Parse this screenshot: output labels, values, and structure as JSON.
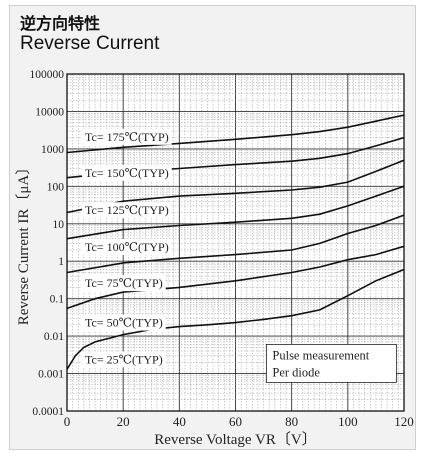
{
  "header": {
    "title_jp": "逆方向特性",
    "title_en": "Reverse Current"
  },
  "chart_data": {
    "type": "line",
    "title": "Reverse Current",
    "xlabel": "Reverse Voltage  VR〔V〕",
    "ylabel": "Reverse Current  IR〔μA〕",
    "xlim": [
      0,
      120
    ],
    "ylim": [
      0.0001,
      100000
    ],
    "yscale": "log",
    "grid": true,
    "x_ticks": [
      "0",
      "20",
      "40",
      "60",
      "80",
      "100",
      "120"
    ],
    "y_ticks": [
      "0.0001",
      "0.001",
      "0.01",
      "0.1",
      "1",
      "10",
      "100",
      "1000",
      "10000",
      "100000"
    ],
    "annotation": [
      "Pulse measurement",
      "Per diode"
    ],
    "series": [
      {
        "name": "Tc= 175℃(TYP)",
        "label_at": [
          5,
          2100
        ],
        "points": [
          [
            0,
            800
          ],
          [
            20,
            1100
          ],
          [
            40,
            1400
          ],
          [
            60,
            1800
          ],
          [
            80,
            2400
          ],
          [
            90,
            2900
          ],
          [
            100,
            3800
          ],
          [
            110,
            5500
          ],
          [
            120,
            8000
          ]
        ]
      },
      {
        "name": "Tc= 150℃(TYP)",
        "label_at": [
          5,
          230
        ],
        "points": [
          [
            0,
            170
          ],
          [
            20,
            240
          ],
          [
            40,
            300
          ],
          [
            60,
            380
          ],
          [
            80,
            470
          ],
          [
            90,
            560
          ],
          [
            100,
            750
          ],
          [
            110,
            1200
          ],
          [
            120,
            2000
          ]
        ]
      },
      {
        "name": "Tc= 125℃(TYP)",
        "label_at": [
          5,
          23
        ],
        "points": [
          [
            0,
            20
          ],
          [
            20,
            40
          ],
          [
            40,
            55
          ],
          [
            60,
            65
          ],
          [
            80,
            80
          ],
          [
            90,
            95
          ],
          [
            100,
            130
          ],
          [
            110,
            250
          ],
          [
            120,
            500
          ]
        ]
      },
      {
        "name": "Tc= 100℃(TYP)",
        "label_at": [
          5,
          2.4
        ],
        "points": [
          [
            0,
            4
          ],
          [
            20,
            7
          ],
          [
            40,
            9
          ],
          [
            60,
            11
          ],
          [
            80,
            14
          ],
          [
            90,
            18
          ],
          [
            100,
            30
          ],
          [
            110,
            55
          ],
          [
            120,
            100
          ]
        ]
      },
      {
        "name": "Tc= 75℃(TYP)",
        "label_at": [
          5,
          0.26
        ],
        "points": [
          [
            0,
            0.5
          ],
          [
            20,
            0.9
          ],
          [
            40,
            1.2
          ],
          [
            60,
            1.5
          ],
          [
            80,
            2
          ],
          [
            90,
            3
          ],
          [
            100,
            5.5
          ],
          [
            110,
            9
          ],
          [
            120,
            17
          ]
        ]
      },
      {
        "name": "Tc= 50℃(TYP)",
        "label_at": [
          5,
          0.023
        ],
        "points": [
          [
            0,
            0.055
          ],
          [
            10,
            0.1
          ],
          [
            20,
            0.15
          ],
          [
            40,
            0.2
          ],
          [
            60,
            0.3
          ],
          [
            80,
            0.5
          ],
          [
            90,
            0.7
          ],
          [
            100,
            1.1
          ],
          [
            110,
            1.5
          ],
          [
            120,
            2.5
          ]
        ]
      },
      {
        "name": "Tc= 25℃(TYP)",
        "label_at": [
          5,
          0.0024
        ],
        "points": [
          [
            0,
            0.0013
          ],
          [
            3,
            0.003
          ],
          [
            6,
            0.005
          ],
          [
            10,
            0.007
          ],
          [
            20,
            0.011
          ],
          [
            30,
            0.015
          ],
          [
            40,
            0.018
          ],
          [
            50,
            0.02
          ],
          [
            60,
            0.023
          ],
          [
            70,
            0.028
          ],
          [
            80,
            0.035
          ],
          [
            90,
            0.05
          ],
          [
            100,
            0.12
          ],
          [
            110,
            0.3
          ],
          [
            120,
            0.6
          ]
        ]
      }
    ]
  }
}
